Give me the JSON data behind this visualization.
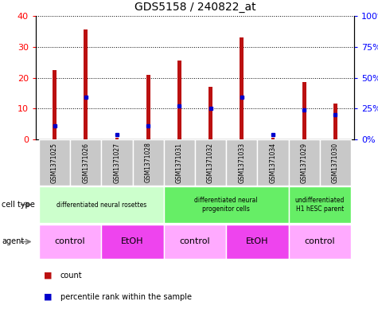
{
  "title": "GDS5158 / 240822_at",
  "samples": [
    "GSM1371025",
    "GSM1371026",
    "GSM1371027",
    "GSM1371028",
    "GSM1371031",
    "GSM1371032",
    "GSM1371033",
    "GSM1371034",
    "GSM1371029",
    "GSM1371030"
  ],
  "counts": [
    22.5,
    35.5,
    0.5,
    21,
    25.5,
    17,
    33,
    0.5,
    18.5,
    11.5
  ],
  "percentile_ranks": [
    11,
    34,
    4,
    11,
    27,
    25,
    34,
    4,
    24,
    20
  ],
  "ylim_left": [
    0,
    40
  ],
  "ylim_right": [
    0,
    100
  ],
  "yticks_left": [
    0,
    10,
    20,
    30,
    40
  ],
  "yticks_right": [
    0,
    25,
    50,
    75,
    100
  ],
  "ytick_labels_left": [
    "0",
    "10",
    "20",
    "30",
    "40"
  ],
  "ytick_labels_right": [
    "0%",
    "25%",
    "50%",
    "75%",
    "100%"
  ],
  "bar_color": "#bb1111",
  "percentile_color": "#0000cc",
  "cell_type_groups": [
    {
      "label": "differentiated neural rosettes",
      "start": 0,
      "end": 3,
      "color": "#ccffcc"
    },
    {
      "label": "differentiated neural\nprogenitor cells",
      "start": 4,
      "end": 7,
      "color": "#66ee66"
    },
    {
      "label": "undifferentiated\nH1 hESC parent",
      "start": 8,
      "end": 9,
      "color": "#66ee66"
    }
  ],
  "agent_groups": [
    {
      "label": "control",
      "start": 0,
      "end": 1,
      "color": "#ffaaff"
    },
    {
      "label": "EtOH",
      "start": 2,
      "end": 3,
      "color": "#ee44ee"
    },
    {
      "label": "control",
      "start": 4,
      "end": 5,
      "color": "#ffaaff"
    },
    {
      "label": "EtOH",
      "start": 6,
      "end": 7,
      "color": "#ee44ee"
    },
    {
      "label": "control",
      "start": 8,
      "end": 9,
      "color": "#ffaaff"
    }
  ],
  "legend_count_label": "count",
  "legend_percentile_label": "percentile rank within the sample",
  "background_color": "#ffffff",
  "plot_bg_color": "#ffffff",
  "tick_area_bg": "#c8c8c8",
  "bar_width": 0.12
}
